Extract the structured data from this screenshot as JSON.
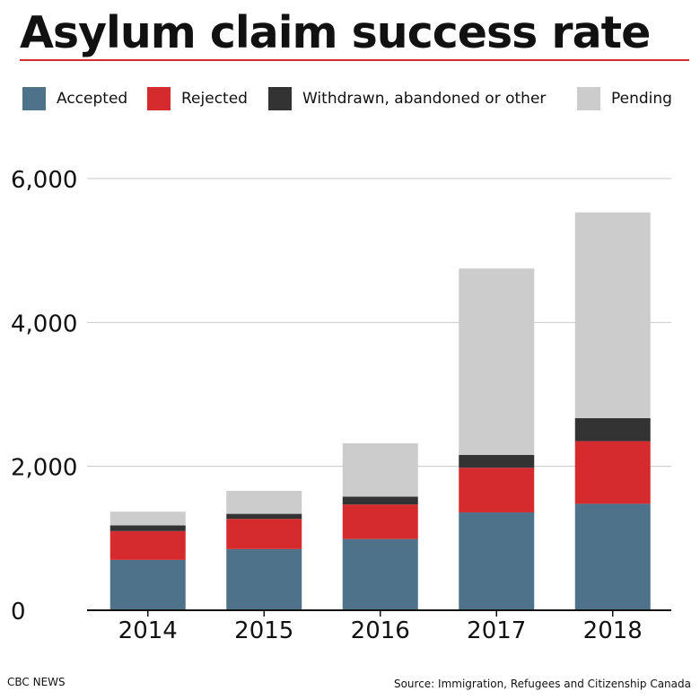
{
  "header": {
    "title": "Asylum claim success rate"
  },
  "footer": {
    "brand": "CBC NEWS",
    "source": "Source: Immigration, Refugees and Citizenship Canada"
  },
  "colors": {
    "accepted": "#4d7289",
    "rejected": "#d52b2e",
    "withdrawn": "#333333",
    "pending": "#cccccc",
    "title_rule": "#d52b2e",
    "gridline": "#c8c8c8",
    "axis": "#111111"
  },
  "chart_data": {
    "type": "bar",
    "stacked": true,
    "title": "Asylum claim success rate",
    "xlabel": "",
    "ylabel": "",
    "categories": [
      "2014",
      "2015",
      "2016",
      "2017",
      "2018"
    ],
    "series": [
      {
        "name": "Accepted",
        "values": [
          700,
          850,
          990,
          1360,
          1480
        ]
      },
      {
        "name": "Rejected",
        "values": [
          400,
          420,
          480,
          620,
          870
        ]
      },
      {
        "name": "Withdrawn, abandoned or other",
        "values": [
          80,
          70,
          110,
          180,
          320
        ]
      },
      {
        "name": "Pending",
        "values": [
          190,
          320,
          740,
          2590,
          2860
        ]
      }
    ],
    "ylim": [
      0,
      6000
    ],
    "yticks": [
      0,
      2000,
      4000,
      6000
    ],
    "ytick_labels": [
      "0",
      "2,000",
      "4,000",
      "6,000"
    ],
    "grid": true,
    "legend_position": "top"
  }
}
